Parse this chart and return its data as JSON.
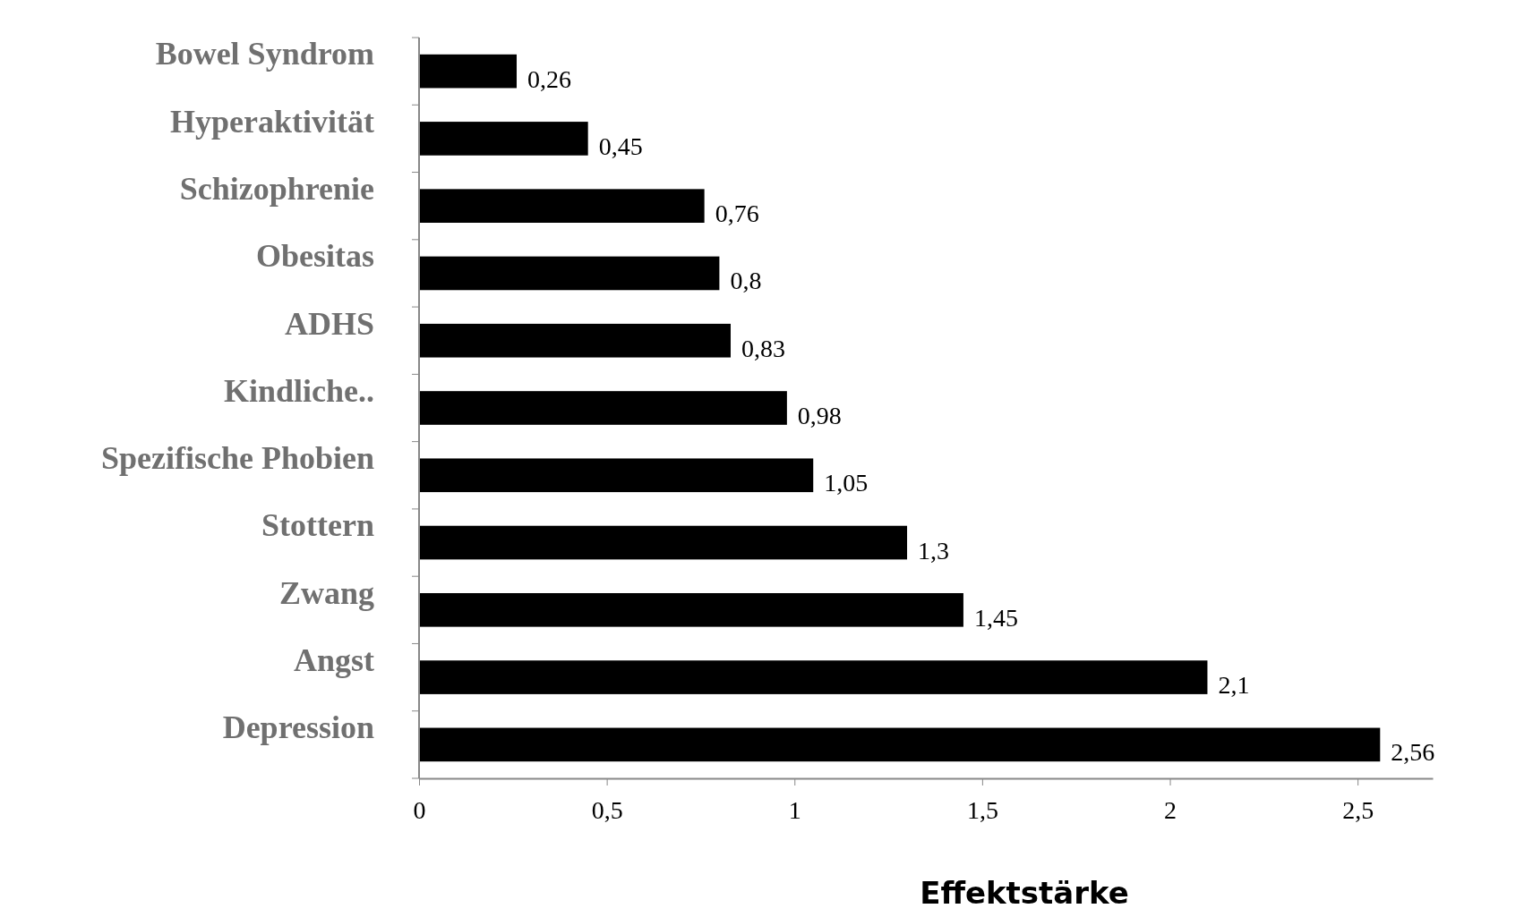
{
  "chart_data": {
    "type": "bar",
    "orientation": "horizontal",
    "xlabel": "Effektstärke",
    "categories": [
      "Bowel Syndrom",
      "Hyperaktivität",
      "Schizophrenie",
      "Obesitas",
      "ADHS",
      "Kindliche..",
      "Spezifische Phobien",
      "Stottern",
      "Zwang",
      "Angst",
      "Depression"
    ],
    "values": [
      0.26,
      0.45,
      0.76,
      0.8,
      0.83,
      0.98,
      1.05,
      1.3,
      1.45,
      2.1,
      2.56
    ],
    "value_labels": [
      "0,26",
      "0,45",
      "0,76",
      "0,8",
      "0,83",
      "0,98",
      "1,05",
      "1,3",
      "1,45",
      "2,1",
      "2,56"
    ],
    "color": "#000000",
    "xlim": [
      0,
      2.7
    ],
    "xticks": [
      0,
      {
        "value": 0.5,
        "label": "0,5"
      },
      1,
      {
        "value": 1.5,
        "label": "1,5"
      },
      2,
      {
        "value": 2.5,
        "label": "2,5"
      }
    ],
    "grid": false
  }
}
